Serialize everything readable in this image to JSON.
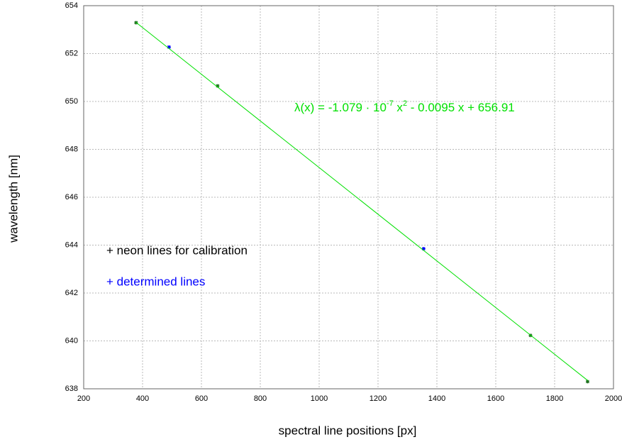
{
  "chart_data": {
    "type": "scatter",
    "x_label": "spectral line positions [px]",
    "y_label": "wavelength [nm]",
    "xlim": [
      200,
      2000
    ],
    "xticks": [
      200,
      400,
      600,
      800,
      1000,
      1200,
      1400,
      1600,
      1800,
      2000
    ],
    "ylim": [
      638,
      654
    ],
    "yticks": [
      638,
      640,
      642,
      644,
      646,
      648,
      650,
      652,
      654
    ],
    "grid": true,
    "legend": "left",
    "series": [
      {
        "name": "+ neon lines for calibration",
        "color": "#000000",
        "marker_color": "#207020",
        "x": [
          378,
          655,
          1718,
          1912
        ],
        "values": [
          653.29,
          650.65,
          640.23,
          638.3
        ]
      },
      {
        "name": "+ determined lines",
        "color": "#0000ff",
        "marker_color": "#0000ff",
        "x": [
          490,
          1355
        ],
        "values": [
          652.27,
          643.85
        ]
      },
      {
        "color": "#00e000",
        "line": true,
        "x": [
          378,
          1912
        ],
        "values": [
          653.3,
          638.35
        ]
      }
    ],
    "annotation": {
      "color": "#00e000",
      "parts": [
        "λ(x) = -1.079 · 10",
        "-7",
        " x",
        "2",
        " - 0.0095 x + 656.91"
      ]
    }
  }
}
